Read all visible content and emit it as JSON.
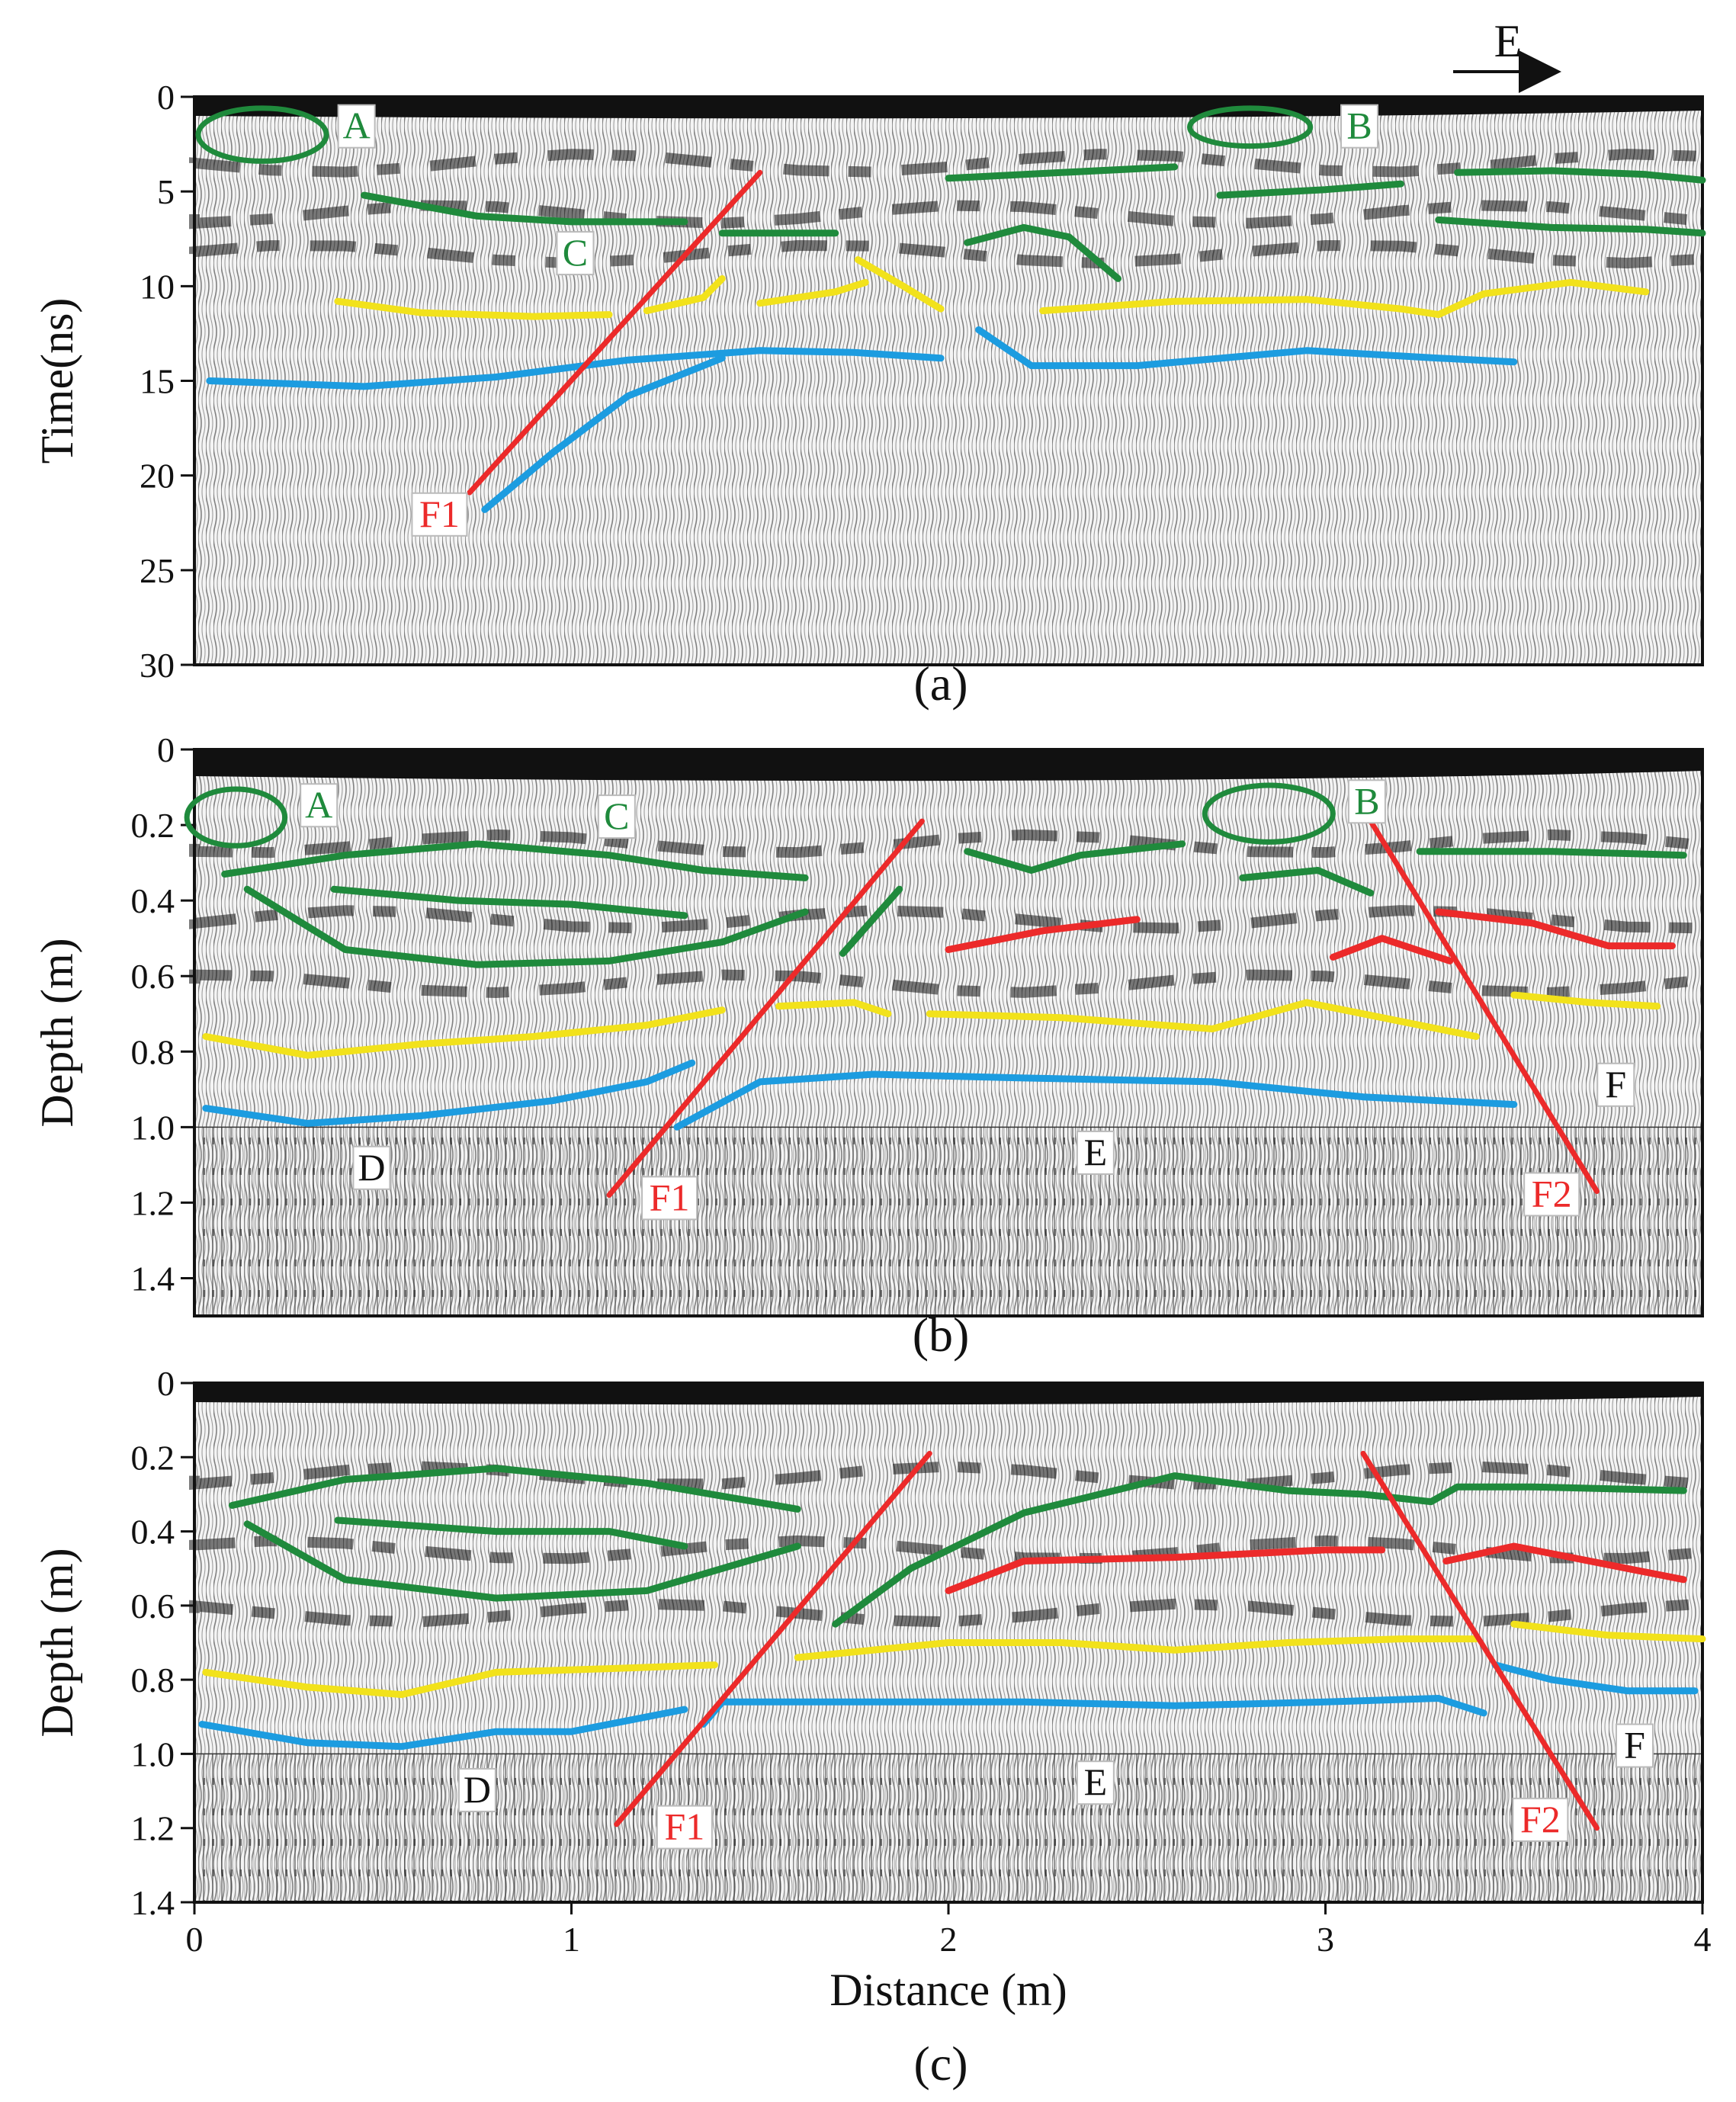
{
  "figure": {
    "direction_label": "E",
    "colors": {
      "green": "#1f8a3c",
      "yellow": "#f2e21b",
      "blue": "#1c9ce0",
      "red": "#ec2a2a",
      "black": "#111111"
    }
  },
  "chart_data": [
    {
      "id": "a",
      "type": "line",
      "panel_label": "(a)",
      "ylabel": "Time(ns)",
      "xlabel": "",
      "xlim": [
        0,
        4
      ],
      "ylim": [
        0,
        30
      ],
      "yticks": [
        0,
        5,
        10,
        15,
        20,
        25,
        30
      ],
      "xticks": [],
      "ellipses": [
        {
          "name": "A",
          "cx": 0.18,
          "cy": 2.0,
          "rx": 0.17,
          "ry": 1.4
        },
        {
          "name": "B",
          "cx": 2.8,
          "cy": 1.6,
          "rx": 0.16,
          "ry": 1.0
        }
      ],
      "labels": [
        {
          "text": "A",
          "x": 0.43,
          "y": 1.8,
          "color": "green",
          "boxed": true
        },
        {
          "text": "B",
          "x": 3.09,
          "y": 1.8,
          "color": "green",
          "boxed": true
        },
        {
          "text": "C",
          "x": 1.01,
          "y": 8.5,
          "color": "green",
          "boxed": true
        },
        {
          "text": "F1",
          "x": 0.65,
          "y": 22.3,
          "color": "red",
          "boxed": true
        }
      ],
      "series": [
        {
          "name": "green-1",
          "color": "green",
          "x": [
            0.45,
            0.75,
            1.0,
            1.3
          ],
          "y": [
            5.2,
            6.3,
            6.6,
            6.6
          ]
        },
        {
          "name": "green-2",
          "color": "green",
          "x": [
            1.4,
            1.7
          ],
          "y": [
            7.2,
            7.2
          ]
        },
        {
          "name": "green-3",
          "color": "green",
          "x": [
            2.0,
            2.3,
            2.6
          ],
          "y": [
            4.3,
            4.0,
            3.7
          ]
        },
        {
          "name": "green-4",
          "color": "green",
          "x": [
            2.72,
            3.0,
            3.2
          ],
          "y": [
            5.2,
            4.9,
            4.6
          ]
        },
        {
          "name": "green-5",
          "color": "green",
          "x": [
            2.05,
            2.2,
            2.32,
            2.45
          ],
          "y": [
            7.7,
            6.9,
            7.4,
            9.6
          ]
        },
        {
          "name": "green-6",
          "color": "green",
          "x": [
            3.35,
            3.6,
            3.85,
            4.0
          ],
          "y": [
            4.0,
            3.9,
            4.1,
            4.4
          ]
        },
        {
          "name": "green-7",
          "color": "green",
          "x": [
            3.3,
            3.6,
            3.85,
            4.0
          ],
          "y": [
            6.5,
            6.9,
            7.0,
            7.2
          ]
        },
        {
          "name": "yellow-1",
          "color": "yellow",
          "x": [
            0.38,
            0.6,
            0.9,
            1.1
          ],
          "y": [
            10.8,
            11.4,
            11.6,
            11.5
          ]
        },
        {
          "name": "yellow-2",
          "color": "yellow",
          "x": [
            1.2,
            1.35,
            1.4
          ],
          "y": [
            11.3,
            10.6,
            9.6
          ]
        },
        {
          "name": "yellow-3",
          "color": "yellow",
          "x": [
            1.5,
            1.7,
            1.78
          ],
          "y": [
            10.9,
            10.3,
            9.8
          ]
        },
        {
          "name": "yellow-4",
          "color": "yellow",
          "x": [
            1.76,
            1.88,
            1.98
          ],
          "y": [
            8.6,
            10.0,
            11.2
          ]
        },
        {
          "name": "yellow-5",
          "color": "yellow",
          "x": [
            2.25,
            2.6,
            2.95,
            3.2,
            3.3,
            3.42,
            3.65,
            3.85
          ],
          "y": [
            11.3,
            10.8,
            10.7,
            11.2,
            11.5,
            10.4,
            9.8,
            10.3
          ]
        },
        {
          "name": "blue-1",
          "color": "blue",
          "x": [
            0.04,
            0.45,
            0.8,
            1.15,
            1.5,
            1.75,
            1.98
          ],
          "y": [
            15.0,
            15.3,
            14.8,
            13.9,
            13.4,
            13.5,
            13.8
          ]
        },
        {
          "name": "blue-2",
          "color": "blue",
          "x": [
            0.77,
            0.95,
            1.15,
            1.4
          ],
          "y": [
            21.8,
            18.8,
            15.8,
            13.8
          ]
        },
        {
          "name": "blue-3",
          "color": "blue",
          "x": [
            2.08,
            2.22,
            2.5,
            2.95,
            3.3,
            3.5
          ],
          "y": [
            12.3,
            14.2,
            14.2,
            13.4,
            13.8,
            14.0
          ]
        },
        {
          "name": "red-F1",
          "color": "red",
          "x": [
            0.73,
            1.5
          ],
          "y": [
            20.9,
            4.0
          ]
        }
      ]
    },
    {
      "id": "b",
      "type": "line",
      "panel_label": "(b)",
      "ylabel": "Depth (m)",
      "xlabel": "",
      "xlim": [
        0,
        4
      ],
      "ylim": [
        0,
        1.5
      ],
      "yticks": [
        0,
        0.2,
        0.4,
        0.6,
        0.8,
        1.0,
        1.2,
        1.4
      ],
      "xticks": [],
      "ellipses": [
        {
          "name": "A",
          "cx": 0.11,
          "cy": 0.18,
          "rx": 0.13,
          "ry": 0.075
        },
        {
          "name": "B",
          "cx": 2.85,
          "cy": 0.17,
          "rx": 0.17,
          "ry": 0.075
        }
      ],
      "labels": [
        {
          "text": "A",
          "x": 0.33,
          "y": 0.16,
          "color": "green",
          "boxed": true
        },
        {
          "text": "B",
          "x": 3.11,
          "y": 0.15,
          "color": "green",
          "boxed": true
        },
        {
          "text": "C",
          "x": 1.12,
          "y": 0.19,
          "color": "green",
          "boxed": true
        },
        {
          "text": "F",
          "x": 3.77,
          "y": 0.9,
          "color": "black",
          "boxed": true
        },
        {
          "text": "D",
          "x": 0.47,
          "y": 1.12,
          "color": "black",
          "boxed": true
        },
        {
          "text": "E",
          "x": 2.39,
          "y": 1.08,
          "color": "black",
          "boxed": true
        },
        {
          "text": "F1",
          "x": 1.26,
          "y": 1.2,
          "color": "red",
          "boxed": true
        },
        {
          "text": "F2",
          "x": 3.6,
          "y": 1.19,
          "color": "red",
          "boxed": true
        }
      ],
      "series": [
        {
          "name": "green-lens-upper",
          "color": "green",
          "x": [
            0.08,
            0.4,
            0.75,
            1.1,
            1.35,
            1.62
          ],
          "y": [
            0.33,
            0.28,
            0.25,
            0.28,
            0.32,
            0.34
          ]
        },
        {
          "name": "green-lens-lower",
          "color": "green",
          "x": [
            0.14,
            0.4,
            0.75,
            1.1,
            1.4,
            1.62
          ],
          "y": [
            0.37,
            0.53,
            0.57,
            0.56,
            0.51,
            0.43
          ]
        },
        {
          "name": "green-mid",
          "color": "green",
          "x": [
            0.37,
            0.7,
            1.0,
            1.3
          ],
          "y": [
            0.37,
            0.4,
            0.41,
            0.44
          ]
        },
        {
          "name": "green-small-1",
          "color": "green",
          "x": [
            1.72,
            1.87
          ],
          "y": [
            0.54,
            0.37
          ]
        },
        {
          "name": "green-small-2",
          "color": "green",
          "x": [
            2.05,
            2.22,
            2.35,
            2.62
          ],
          "y": [
            0.27,
            0.32,
            0.28,
            0.25
          ]
        },
        {
          "name": "green-small-3",
          "color": "green",
          "x": [
            2.78,
            2.98,
            3.12
          ],
          "y": [
            0.34,
            0.32,
            0.38
          ]
        },
        {
          "name": "green-right",
          "color": "green",
          "x": [
            3.25,
            3.6,
            3.95
          ],
          "y": [
            0.27,
            0.27,
            0.28
          ]
        },
        {
          "name": "red-1",
          "color": "red",
          "x": [
            2.0,
            2.25,
            2.5
          ],
          "y": [
            0.53,
            0.48,
            0.45
          ]
        },
        {
          "name": "red-2",
          "color": "red",
          "x": [
            3.02,
            3.15,
            3.33
          ],
          "y": [
            0.55,
            0.5,
            0.56
          ]
        },
        {
          "name": "red-3",
          "color": "red",
          "x": [
            3.3,
            3.55,
            3.75,
            3.92
          ],
          "y": [
            0.43,
            0.46,
            0.52,
            0.52
          ]
        },
        {
          "name": "yellow-1",
          "color": "yellow",
          "x": [
            0.03,
            0.3,
            0.6,
            0.9,
            1.2,
            1.4
          ],
          "y": [
            0.76,
            0.81,
            0.78,
            0.76,
            0.73,
            0.69
          ]
        },
        {
          "name": "yellow-2",
          "color": "yellow",
          "x": [
            1.55,
            1.75,
            1.84
          ],
          "y": [
            0.68,
            0.67,
            0.7
          ]
        },
        {
          "name": "yellow-3",
          "color": "yellow",
          "x": [
            1.95,
            2.3,
            2.7,
            2.95,
            3.15,
            3.4
          ],
          "y": [
            0.7,
            0.71,
            0.74,
            0.67,
            0.71,
            0.76
          ]
        },
        {
          "name": "yellow-4",
          "color": "yellow",
          "x": [
            3.5,
            3.7,
            3.88
          ],
          "y": [
            0.65,
            0.67,
            0.68
          ]
        },
        {
          "name": "blue-1",
          "color": "blue",
          "x": [
            0.03,
            0.3,
            0.6,
            0.95,
            1.2,
            1.32
          ],
          "y": [
            0.95,
            0.99,
            0.97,
            0.93,
            0.88,
            0.83
          ]
        },
        {
          "name": "blue-2",
          "color": "blue",
          "x": [
            1.28,
            1.5,
            1.8,
            2.2,
            2.7,
            3.1,
            3.5
          ],
          "y": [
            1.0,
            0.88,
            0.86,
            0.87,
            0.88,
            0.92,
            0.94
          ]
        },
        {
          "name": "red-F1",
          "color": "red",
          "x": [
            1.1,
            1.93
          ],
          "y": [
            1.18,
            0.19
          ]
        },
        {
          "name": "red-F2",
          "color": "red",
          "x": [
            3.12,
            3.72
          ],
          "y": [
            0.19,
            1.17
          ]
        }
      ]
    },
    {
      "id": "c",
      "type": "line",
      "panel_label": "(c)",
      "ylabel": "Depth (m)",
      "xlabel": "Distance (m)",
      "xlim": [
        0,
        4
      ],
      "ylim": [
        0,
        1.4
      ],
      "yticks": [
        0,
        0.2,
        0.4,
        0.6,
        0.8,
        1.0,
        1.2,
        1.4
      ],
      "xticks": [
        0,
        1,
        2,
        3,
        4
      ],
      "ellipses": [],
      "labels": [
        {
          "text": "D",
          "x": 0.75,
          "y": 1.11,
          "color": "black",
          "boxed": true
        },
        {
          "text": "E",
          "x": 2.39,
          "y": 1.09,
          "color": "black",
          "boxed": true
        },
        {
          "text": "F",
          "x": 3.82,
          "y": 0.99,
          "color": "black",
          "boxed": true
        },
        {
          "text": "F1",
          "x": 1.3,
          "y": 1.21,
          "color": "red",
          "boxed": true
        },
        {
          "text": "F2",
          "x": 3.57,
          "y": 1.19,
          "color": "red",
          "boxed": true
        }
      ],
      "series": [
        {
          "name": "green-lens-upper",
          "color": "green",
          "x": [
            0.1,
            0.4,
            0.8,
            1.2,
            1.6
          ],
          "y": [
            0.33,
            0.26,
            0.23,
            0.27,
            0.34
          ]
        },
        {
          "name": "green-lens-lower",
          "color": "green",
          "x": [
            0.14,
            0.4,
            0.8,
            1.2,
            1.6
          ],
          "y": [
            0.38,
            0.53,
            0.58,
            0.56,
            0.44
          ]
        },
        {
          "name": "green-mid",
          "color": "green",
          "x": [
            0.38,
            0.8,
            1.1,
            1.3
          ],
          "y": [
            0.37,
            0.4,
            0.4,
            0.44
          ]
        },
        {
          "name": "green-upper-right",
          "color": "green",
          "x": [
            1.7,
            1.9,
            2.2,
            2.6,
            2.9,
            3.1,
            3.28,
            3.35,
            3.55,
            3.95
          ],
          "y": [
            0.65,
            0.5,
            0.35,
            0.25,
            0.29,
            0.3,
            0.32,
            0.28,
            0.28,
            0.29
          ]
        },
        {
          "name": "red-1",
          "color": "red",
          "x": [
            2.0,
            2.2,
            2.6,
            3.0,
            3.15
          ],
          "y": [
            0.56,
            0.48,
            0.47,
            0.45,
            0.45
          ]
        },
        {
          "name": "red-2",
          "color": "red",
          "x": [
            3.32,
            3.5,
            3.75,
            3.95
          ],
          "y": [
            0.48,
            0.44,
            0.49,
            0.53
          ]
        },
        {
          "name": "yellow-1",
          "color": "yellow",
          "x": [
            0.03,
            0.3,
            0.55,
            0.8,
            1.1,
            1.38
          ],
          "y": [
            0.78,
            0.82,
            0.84,
            0.78,
            0.77,
            0.76
          ]
        },
        {
          "name": "yellow-2",
          "color": "yellow",
          "x": [
            1.6,
            2.0,
            2.3,
            2.6,
            2.9,
            3.2,
            3.4
          ],
          "y": [
            0.74,
            0.7,
            0.7,
            0.72,
            0.7,
            0.69,
            0.69
          ]
        },
        {
          "name": "yellow-3",
          "color": "yellow",
          "x": [
            3.5,
            3.75,
            4.0
          ],
          "y": [
            0.65,
            0.68,
            0.69
          ]
        },
        {
          "name": "blue-1",
          "color": "blue",
          "x": [
            0.02,
            0.3,
            0.55,
            0.8,
            1.0,
            1.3
          ],
          "y": [
            0.92,
            0.97,
            0.98,
            0.94,
            0.94,
            0.88
          ]
        },
        {
          "name": "blue-2",
          "color": "blue",
          "x": [
            1.35,
            1.4,
            1.8,
            2.2,
            2.6,
            3.0,
            3.3,
            3.42
          ],
          "y": [
            0.92,
            0.86,
            0.86,
            0.86,
            0.87,
            0.86,
            0.85,
            0.89
          ]
        },
        {
          "name": "blue-3",
          "color": "blue",
          "x": [
            3.45,
            3.6,
            3.8,
            3.98
          ],
          "y": [
            0.76,
            0.8,
            0.83,
            0.83
          ]
        },
        {
          "name": "red-F1",
          "color": "red",
          "x": [
            1.12,
            1.95
          ],
          "y": [
            1.19,
            0.19
          ]
        },
        {
          "name": "red-F2",
          "color": "red",
          "x": [
            3.1,
            3.72
          ],
          "y": [
            0.19,
            1.2
          ]
        }
      ]
    }
  ]
}
